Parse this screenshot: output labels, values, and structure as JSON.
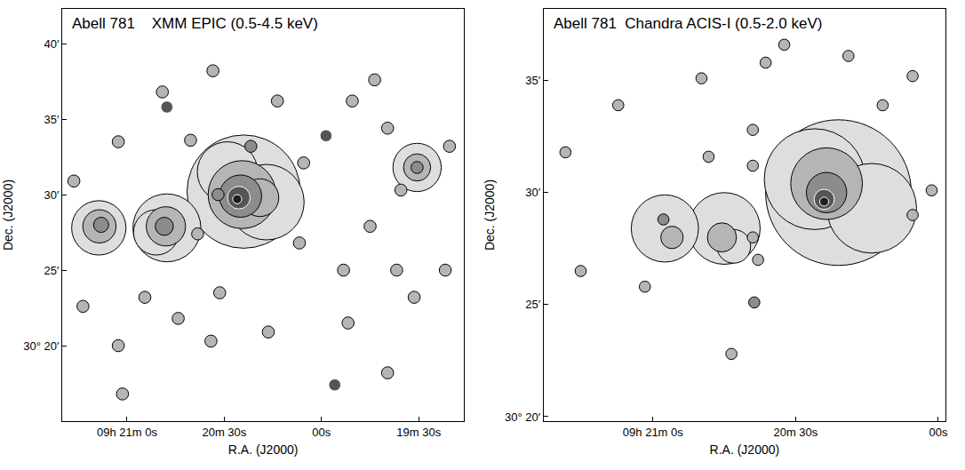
{
  "chart_data": [
    {
      "type": "scatter",
      "title": "Abell 781    XMM EPIC (0.5-4.5 keV)",
      "x_label": "R.A. (J2000)",
      "y_label": "Dec. (J2000)",
      "xlim": [
        1280,
        1156
      ],
      "ylim": [
        15,
        42.3
      ],
      "xticks": [
        {
          "value": 1260,
          "label": "09h 21m 0s"
        },
        {
          "value": 1230,
          "label": "20m 30s"
        },
        {
          "value": 1200,
          "label": "00s"
        },
        {
          "value": 1170,
          "label": "19m 30s"
        }
      ],
      "yticks": [
        {
          "value": 20,
          "label": "30° 20′"
        },
        {
          "value": 25,
          "label": "25′"
        },
        {
          "value": 30,
          "label": "30′"
        },
        {
          "value": 35,
          "label": "35′"
        },
        {
          "value": 40,
          "label": "40′"
        }
      ],
      "sources": {
        "x": [
          1224,
          1217,
          1229,
          1224.5,
          1219,
          1225,
          1225.5,
          1226,
          1247.7,
          1251,
          1248,
          1248.5,
          1268.7,
          1268.5,
          1268,
          1170.5,
          1170.5,
          1170.5,
          1221.8,
          1198.6,
          1240.4,
          1247.7,
          1262.7,
          1249.1,
          1233.5,
          1213.6,
          1190.5,
          1183.6,
          1160.5,
          1179.6,
          1231.9,
          1175.5,
          1238.2,
          1231.4,
          1244.2,
          1234.1,
          1216.4,
          1191.8,
          1193.2,
          1176.8,
          1171.4,
          1195.9,
          1179.6,
          1254.5,
          1273.6,
          1262.7,
          1206.8,
          1185.0,
          1276.4,
          1161.8,
          1205.5,
          1261.4
        ],
        "y": [
          30.2,
          29.5,
          31.5,
          30.0,
          29.8,
          29.9,
          29.8,
          29.7,
          27.8,
          27.5,
          27.9,
          27.9,
          27.8,
          27.9,
          28.0,
          31.8,
          31.8,
          31.8,
          33.2,
          33.9,
          33.6,
          35.8,
          33.5,
          36.8,
          38.2,
          36.2,
          36.2,
          37.6,
          33.2,
          34.4,
          30.0,
          30.3,
          27.4,
          23.5,
          21.8,
          20.3,
          20.9,
          21.5,
          25.0,
          25.0,
          23.2,
          17.4,
          18.2,
          23.2,
          22.6,
          20.0,
          26.8,
          27.9,
          30.9,
          25.0,
          32.1,
          16.8
        ],
        "size": [
          7.5,
          5,
          4,
          4.5,
          2.5,
          2.8,
          1.5,
          0.6,
          4.5,
          3,
          2.6,
          1.2,
          3.6,
          2.2,
          1.0,
          3.2,
          1.8,
          0.8,
          0.8,
          0.8,
          0.8,
          0.8,
          0.8,
          0.8,
          0.8,
          0.8,
          0.8,
          0.8,
          0.8,
          0.8,
          0.8,
          0.8,
          0.8,
          0.8,
          0.8,
          0.8,
          0.8,
          0.8,
          0.8,
          0.8,
          0.8,
          0.8,
          0.8,
          0.8,
          0.8,
          0.8,
          0.8,
          0.8,
          0.8,
          0.8,
          0.8,
          0.8
        ],
        "level": [
          1,
          1,
          1,
          2,
          2,
          3,
          4,
          5,
          1,
          1,
          2,
          3,
          1,
          2,
          3,
          1,
          2,
          3,
          3,
          4,
          2,
          4,
          2,
          2,
          2,
          2,
          2,
          2,
          2,
          2,
          3,
          2,
          2,
          2,
          2,
          2,
          2,
          2,
          2,
          2,
          2,
          4,
          2,
          2,
          2,
          2,
          2,
          2,
          2,
          2,
          2,
          2
        ]
      }
    },
    {
      "type": "scatter",
      "title": "Abell 781  Chandra ACIS-I (0.5-2.0 keV)",
      "x_label": "R.A. (J2000)",
      "y_label": "Dec. (J2000)",
      "xlim": [
        1283,
        1198.5
      ],
      "ylim": [
        19.8,
        38.2
      ],
      "xticks": [
        {
          "value": 1260,
          "label": "09h 21m 0s"
        },
        {
          "value": 1230,
          "label": "20m 30s"
        },
        {
          "value": 1200,
          "label": "00s"
        }
      ],
      "yticks": [
        {
          "value": 20,
          "label": "30° 20′"
        },
        {
          "value": 25,
          "label": "25′"
        },
        {
          "value": 30,
          "label": "30′"
        },
        {
          "value": 35,
          "label": "35′"
        }
      ],
      "sources": {
        "x": [
          1221,
          1226,
          1214,
          1223.5,
          1223.5,
          1224,
          1224,
          1245,
          1243,
          1245.5,
          1257.5,
          1256,
          1257.8,
          1248.3,
          1239.0,
          1232.4,
          1218.9,
          1236.3,
          1249.8,
          1205.4,
          1211.7,
          1278.4,
          1267.3,
          1239.0,
          1239.0,
          1237.9,
          1238.7,
          1243.5,
          1275.2,
          1261.7,
          1205.4,
          1201.4
        ],
        "y": [
          30.0,
          30.6,
          29.3,
          30.4,
          30.0,
          29.7,
          29.6,
          28.4,
          27.6,
          28.0,
          28.4,
          28.0,
          28.8,
          31.6,
          32.8,
          36.6,
          36.1,
          35.8,
          35.1,
          35.2,
          33.9,
          31.8,
          33.9,
          31.2,
          28.0,
          27.0,
          25.1,
          22.8,
          26.5,
          25.8,
          29.0,
          30.1
        ],
        "size": [
          6.5,
          4.5,
          4,
          3.2,
          1.8,
          0.9,
          0.4,
          3.2,
          1.5,
          1.3,
          3,
          1,
          0.5,
          0.5,
          0.5,
          0.5,
          0.5,
          0.5,
          0.5,
          0.5,
          0.5,
          0.5,
          0.5,
          0.5,
          0.5,
          0.5,
          0.5,
          0.5,
          0.5,
          0.5,
          0.5,
          0.5
        ],
        "level": [
          1,
          1,
          1,
          2,
          3,
          4,
          5,
          1,
          1,
          2,
          1,
          2,
          3,
          2,
          2,
          2,
          2,
          2,
          2,
          2,
          2,
          2,
          2,
          2,
          2,
          2,
          3,
          2,
          2,
          2,
          2,
          2
        ]
      }
    }
  ]
}
